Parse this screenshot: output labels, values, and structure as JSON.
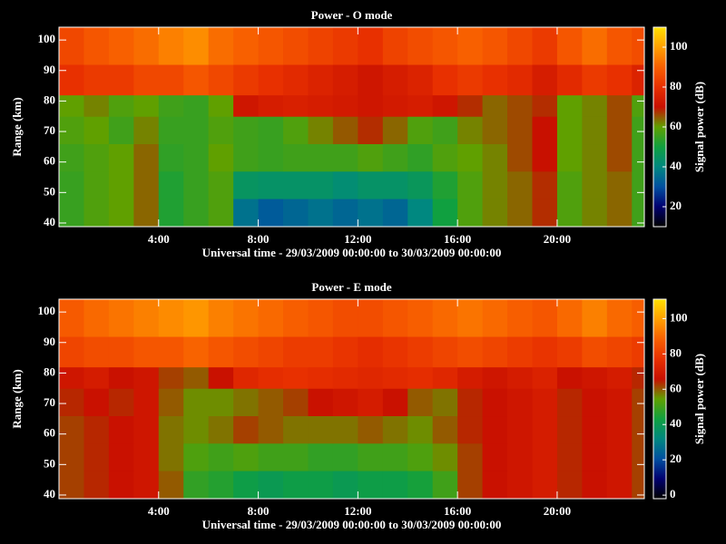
{
  "chart_data": [
    {
      "type": "heatmap",
      "title": "Power - O mode",
      "xlabel": "Universal time - 29/03/2009 00:00:00 to 30/03/2009 00:00:00",
      "ylabel": "Range (km)",
      "colorbar_label": "Signal power (dB)",
      "xlim": [
        0,
        23.5
      ],
      "ylim": [
        38.8,
        104.2
      ],
      "clim": [
        10,
        110
      ],
      "xticks": [
        {
          "value": 4,
          "label": "4:00"
        },
        {
          "value": 8,
          "label": "8:00"
        },
        {
          "value": 12,
          "label": "12:00"
        },
        {
          "value": 16,
          "label": "16:00"
        },
        {
          "value": 20,
          "label": "20:00"
        }
      ],
      "yticks": [
        40,
        50,
        60,
        70,
        80,
        90,
        100
      ],
      "cticks": [
        20,
        40,
        60,
        80,
        100
      ],
      "colormap": [
        "#000000",
        "#000070",
        "#0050a0",
        "#008880",
        "#10a040",
        "#60a000",
        "#c81000",
        "#e83000",
        "#f86000",
        "#ffa000",
        "#ffe000"
      ],
      "x_edges": [
        0,
        1,
        2,
        3,
        4,
        5,
        6,
        7,
        8,
        9,
        10,
        11,
        12,
        13,
        14,
        15,
        16,
        17,
        18,
        19,
        20,
        21,
        22,
        23,
        23.5
      ],
      "y_edges": [
        38.8,
        48,
        57,
        66,
        75,
        82,
        92,
        104.2
      ],
      "z": [
        [
          55,
          58,
          60,
          64,
          52,
          55,
          58,
          36,
          32,
          34,
          36,
          34,
          36,
          34,
          40,
          50,
          58,
          62,
          64,
          68,
          58,
          62,
          64,
          56
        ],
        [
          55,
          58,
          60,
          64,
          52,
          55,
          58,
          45,
          44,
          44,
          44,
          42,
          44,
          44,
          46,
          52,
          58,
          62,
          64,
          68,
          58,
          62,
          64,
          56
        ],
        [
          56,
          58,
          60,
          64,
          54,
          55,
          60,
          56,
          55,
          56,
          56,
          56,
          58,
          56,
          54,
          58,
          60,
          62,
          66,
          70,
          60,
          62,
          66,
          56
        ],
        [
          58,
          60,
          56,
          62,
          55,
          55,
          58,
          56,
          55,
          58,
          62,
          65,
          68,
          64,
          58,
          56,
          62,
          64,
          66,
          70,
          60,
          62,
          66,
          56
        ],
        [
          60,
          62,
          58,
          60,
          56,
          55,
          60,
          72,
          74,
          75,
          74,
          73,
          72,
          73,
          74,
          72,
          68,
          64,
          66,
          68,
          60,
          62,
          66,
          58
        ],
        [
          80,
          82,
          82,
          85,
          85,
          88,
          85,
          82,
          80,
          78,
          76,
          74,
          72,
          74,
          76,
          80,
          82,
          80,
          78,
          74,
          78,
          82,
          80,
          76
        ],
        [
          85,
          88,
          90,
          92,
          95,
          97,
          92,
          90,
          88,
          86,
          84,
          82,
          80,
          84,
          86,
          88,
          90,
          88,
          85,
          82,
          88,
          92,
          88,
          86
        ]
      ]
    },
    {
      "type": "heatmap",
      "title": "Power - E mode",
      "xlabel": "Universal time - 29/03/2009 00:00:00 to 30/03/2009 00:00:00",
      "ylabel": "Range (km)",
      "colorbar_label": "Signal power (dB)",
      "xlim": [
        0,
        23.5
      ],
      "ylim": [
        38.8,
        104.2
      ],
      "clim": [
        -2,
        111
      ],
      "xticks": [
        {
          "value": 4,
          "label": "4:00"
        },
        {
          "value": 8,
          "label": "8:00"
        },
        {
          "value": 12,
          "label": "12:00"
        },
        {
          "value": 16,
          "label": "16:00"
        },
        {
          "value": 20,
          "label": "20:00"
        }
      ],
      "yticks": [
        40,
        50,
        60,
        70,
        80,
        90,
        100
      ],
      "cticks": [
        0,
        20,
        40,
        60,
        80,
        100
      ],
      "colormap": [
        "#000000",
        "#000070",
        "#0050a0",
        "#008880",
        "#10a040",
        "#60a000",
        "#c81000",
        "#e83000",
        "#f86000",
        "#ffa000",
        "#ffe000"
      ],
      "x_edges": [
        0,
        1,
        2,
        3,
        4,
        5,
        6,
        7,
        8,
        9,
        10,
        11,
        12,
        13,
        14,
        15,
        16,
        17,
        18,
        19,
        20,
        21,
        22,
        23,
        23.5
      ],
      "y_edges": [
        38.8,
        48,
        57,
        66,
        75,
        82,
        92,
        104.2
      ],
      "z": [
        [
          62,
          64,
          66,
          68,
          60,
          48,
          46,
          42,
          40,
          42,
          42,
          40,
          42,
          42,
          44,
          50,
          62,
          66,
          68,
          70,
          64,
          66,
          68,
          62
        ],
        [
          62,
          64,
          66,
          68,
          58,
          52,
          50,
          52,
          50,
          50,
          48,
          48,
          50,
          50,
          52,
          56,
          62,
          66,
          68,
          70,
          64,
          66,
          68,
          62
        ],
        [
          62,
          64,
          66,
          68,
          58,
          56,
          58,
          62,
          60,
          58,
          58,
          58,
          60,
          58,
          56,
          60,
          64,
          66,
          68,
          70,
          64,
          66,
          68,
          62
        ],
        [
          64,
          66,
          64,
          68,
          60,
          56,
          56,
          58,
          60,
          62,
          66,
          68,
          70,
          66,
          60,
          58,
          64,
          66,
          68,
          70,
          64,
          66,
          68,
          62
        ],
        [
          68,
          70,
          66,
          68,
          62,
          60,
          66,
          74,
          76,
          77,
          76,
          75,
          74,
          75,
          76,
          74,
          70,
          68,
          70,
          72,
          66,
          68,
          70,
          64
        ],
        [
          82,
          84,
          84,
          86,
          86,
          89,
          86,
          84,
          82,
          80,
          80,
          78,
          76,
          78,
          80,
          82,
          84,
          82,
          80,
          78,
          80,
          84,
          82,
          80
        ],
        [
          87,
          90,
          92,
          94,
          96,
          98,
          94,
          92,
          90,
          88,
          86,
          84,
          84,
          86,
          88,
          90,
          92,
          90,
          88,
          86,
          90,
          94,
          90,
          88
        ]
      ]
    }
  ]
}
